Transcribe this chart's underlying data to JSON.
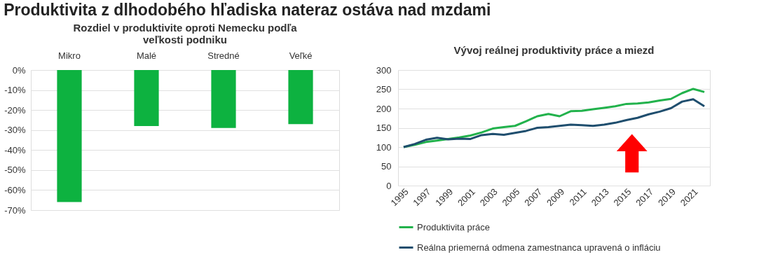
{
  "chart_data": [
    {
      "type": "bar",
      "title": "Produktivita z dlhodobého hľadiska nateraz ostáva nad mzdami",
      "subtitle": "Rozdiel v produktivite oproti Nemecku podľa\nveľkosti podniku",
      "categories": [
        "Mikro",
        "Malé",
        "Stredné",
        "Veľké"
      ],
      "values": [
        -66,
        -28,
        -29,
        -27
      ],
      "color": "#0db240",
      "ylim": [
        -70,
        0
      ],
      "yticks": [
        {
          "value": 0,
          "label": "0%"
        },
        {
          "value": -10,
          "label": "-10%"
        },
        {
          "value": -20,
          "label": "-20%"
        },
        {
          "value": -30,
          "label": "-30%"
        },
        {
          "value": -40,
          "label": "-40%"
        },
        {
          "value": -50,
          "label": "-50%"
        },
        {
          "value": -60,
          "label": "-60%"
        },
        {
          "value": -70,
          "label": "-70%"
        }
      ],
      "grid": "y"
    },
    {
      "type": "line",
      "title": "Vývoj reálnej produktivity práce a miezd",
      "categories": [
        "1995",
        null,
        "1997",
        null,
        "1999",
        null,
        "2001",
        null,
        "2003",
        null,
        "2005",
        null,
        "2007",
        null,
        "2009",
        null,
        "2011",
        null,
        "2013",
        null,
        "2015",
        null,
        "2017",
        null,
        "2019",
        null,
        "2021",
        null
      ],
      "series": [
        {
          "name": "Produktivita práce",
          "color": "#22b24c",
          "values": [
            100,
            106,
            113,
            117,
            121,
            125,
            130,
            138,
            148,
            152,
            155,
            167,
            180,
            186,
            180,
            193,
            194,
            198,
            202,
            206,
            212,
            213,
            216,
            221,
            225,
            240,
            251,
            243
          ]
        },
        {
          "name": "Reálna priemerná odmena zamestnanca upravená o infláciu",
          "color": "#1f4e6e",
          "values": [
            100,
            108,
            119,
            124,
            120,
            122,
            121,
            131,
            134,
            132,
            137,
            142,
            150,
            152,
            155,
            158,
            157,
            155,
            158,
            163,
            170,
            176,
            185,
            192,
            201,
            218,
            224,
            206
          ]
        }
      ],
      "ylim": [
        0,
        300
      ],
      "yticks": [
        0,
        50,
        100,
        150,
        200,
        250,
        300
      ],
      "grid": "y",
      "legend": "bottom",
      "marker": "none",
      "line_style": "solid"
    }
  ]
}
